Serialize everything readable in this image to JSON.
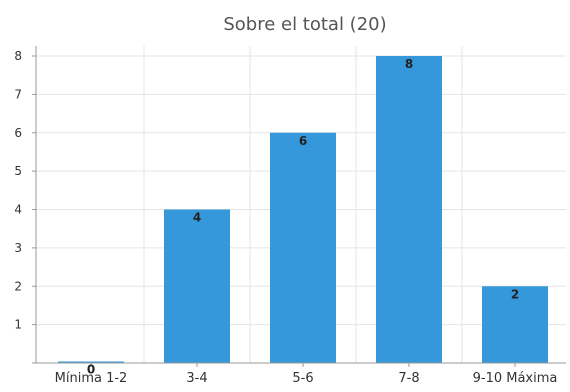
{
  "chart_data": {
    "type": "bar",
    "title": "Sobre el total (20)",
    "categories": [
      "Mínima 1-2",
      "3-4",
      "5-6",
      "7-8",
      "9-10 Máxima"
    ],
    "values": [
      0,
      4,
      6,
      8,
      2
    ],
    "data_labels": [
      "0",
      "4",
      "6",
      "8",
      "2"
    ],
    "xlabel": "",
    "ylabel": "",
    "ylim": [
      0,
      8
    ],
    "yticks": [
      1,
      2,
      3,
      4,
      5,
      6,
      7,
      8
    ],
    "grid": true,
    "bar_color": "#3498db",
    "grid_color": "#e5e5e5",
    "axis_color": "#999999"
  }
}
